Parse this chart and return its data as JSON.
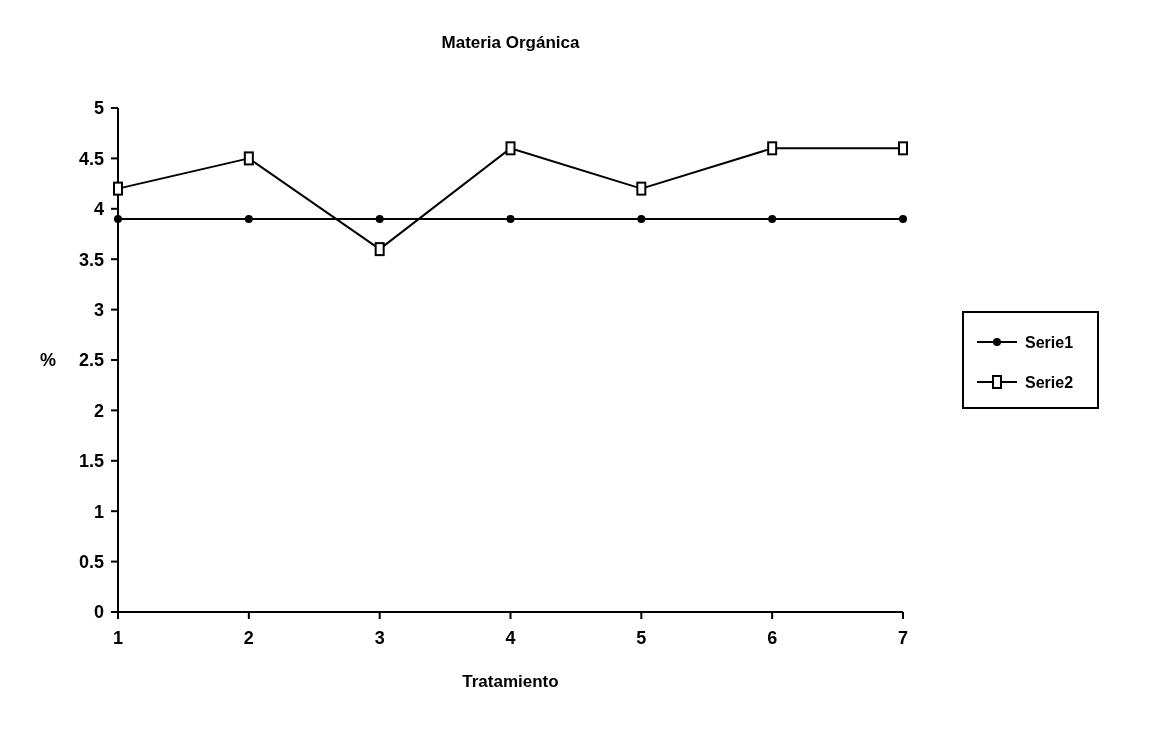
{
  "chart_data": {
    "type": "line",
    "title": "Materia Orgánica",
    "xlabel": "Tratamiento",
    "ylabel": "%",
    "x": [
      1,
      2,
      3,
      4,
      5,
      6,
      7
    ],
    "xlim": [
      1,
      7
    ],
    "xticks": [
      1,
      2,
      3,
      4,
      5,
      6,
      7
    ],
    "ylim": [
      0,
      5
    ],
    "yticks": [
      0,
      0.5,
      1,
      1.5,
      2,
      2.5,
      3,
      3.5,
      4,
      4.5,
      5
    ],
    "series": [
      {
        "name": "Serie1",
        "color": "#000000",
        "marker": "circle",
        "values": [
          3.9,
          3.9,
          3.9,
          3.9,
          3.9,
          3.9,
          3.9
        ]
      },
      {
        "name": "Serie2",
        "color": "#000000",
        "marker": "square",
        "values": [
          4.2,
          4.5,
          3.6,
          4.6,
          4.2,
          4.6,
          4.6
        ]
      }
    ],
    "legend": "right",
    "grid": false,
    "line_style": "solid"
  }
}
